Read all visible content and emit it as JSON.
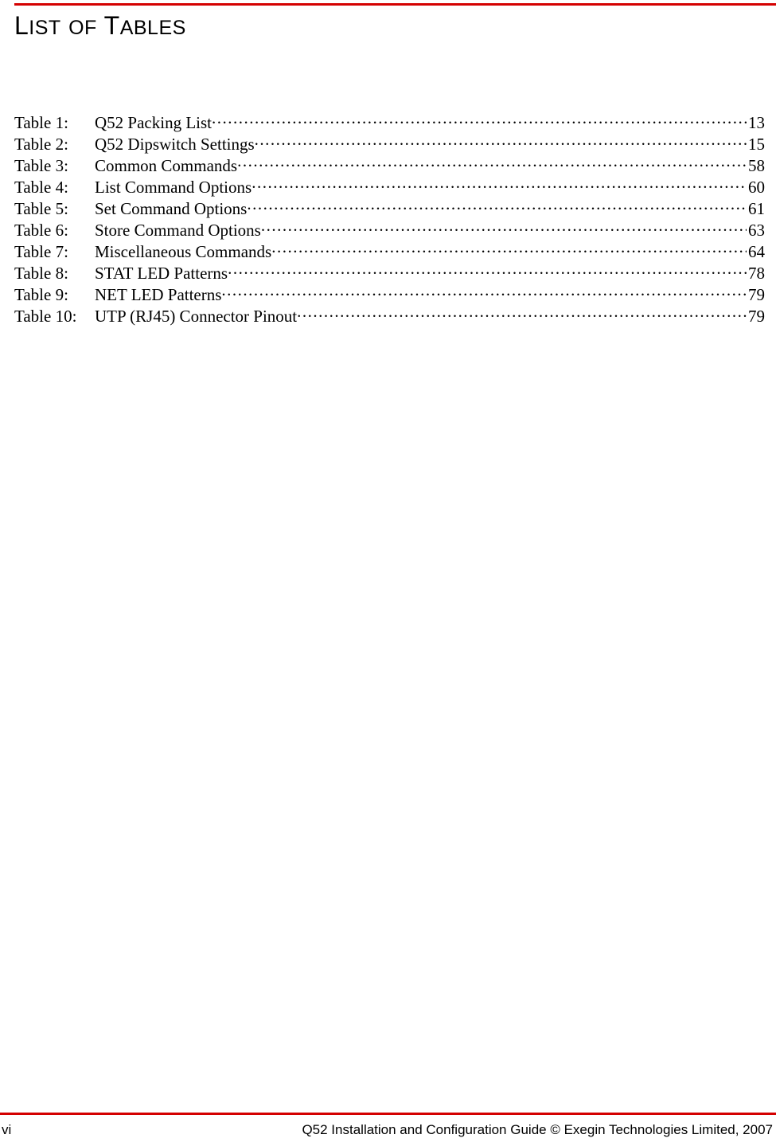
{
  "colors": {
    "rule": "#d40000",
    "text": "#000000",
    "background": "#ffffff"
  },
  "typography": {
    "body_font": "Times New Roman",
    "heading_font": "Arial",
    "body_size_pt": 16,
    "heading_size_pt": 24,
    "footer_font": "Arial",
    "footer_size_pt": 13
  },
  "heading": {
    "word1_first": "L",
    "word1_rest": "IST",
    "of_first": "O",
    "of_rest": "F",
    "word2_first": "T",
    "word2_rest": "ABLES"
  },
  "entries": [
    {
      "label": "Table 1:",
      "title": "Q52 Packing List",
      "page": "13"
    },
    {
      "label": "Table 2:",
      "title": "Q52 Dipswitch Settings ",
      "page": "15"
    },
    {
      "label": "Table 3:",
      "title": "Common Commands",
      "page": "58"
    },
    {
      "label": "Table 4:",
      "title": "List Command Options",
      "page": "60"
    },
    {
      "label": "Table 5:",
      "title": "Set Command Options",
      "page": "61"
    },
    {
      "label": "Table 6:",
      "title": "Store Command Options",
      "page": "63"
    },
    {
      "label": "Table 7:",
      "title": "Miscellaneous Commands ",
      "page": "64"
    },
    {
      "label": "Table 8:",
      "title": "STAT LED Patterns",
      "page": "78"
    },
    {
      "label": "Table 9:",
      "title": "NET LED Patterns ",
      "page": "79"
    },
    {
      "label": "Table 10:",
      "title": "UTP (RJ45) Connector Pinout",
      "page": "79"
    }
  ],
  "footer": {
    "page_number": "vi",
    "text": "Q52 Installation and Configuration Guide  © Exegin Technologies Limited, 2007"
  }
}
